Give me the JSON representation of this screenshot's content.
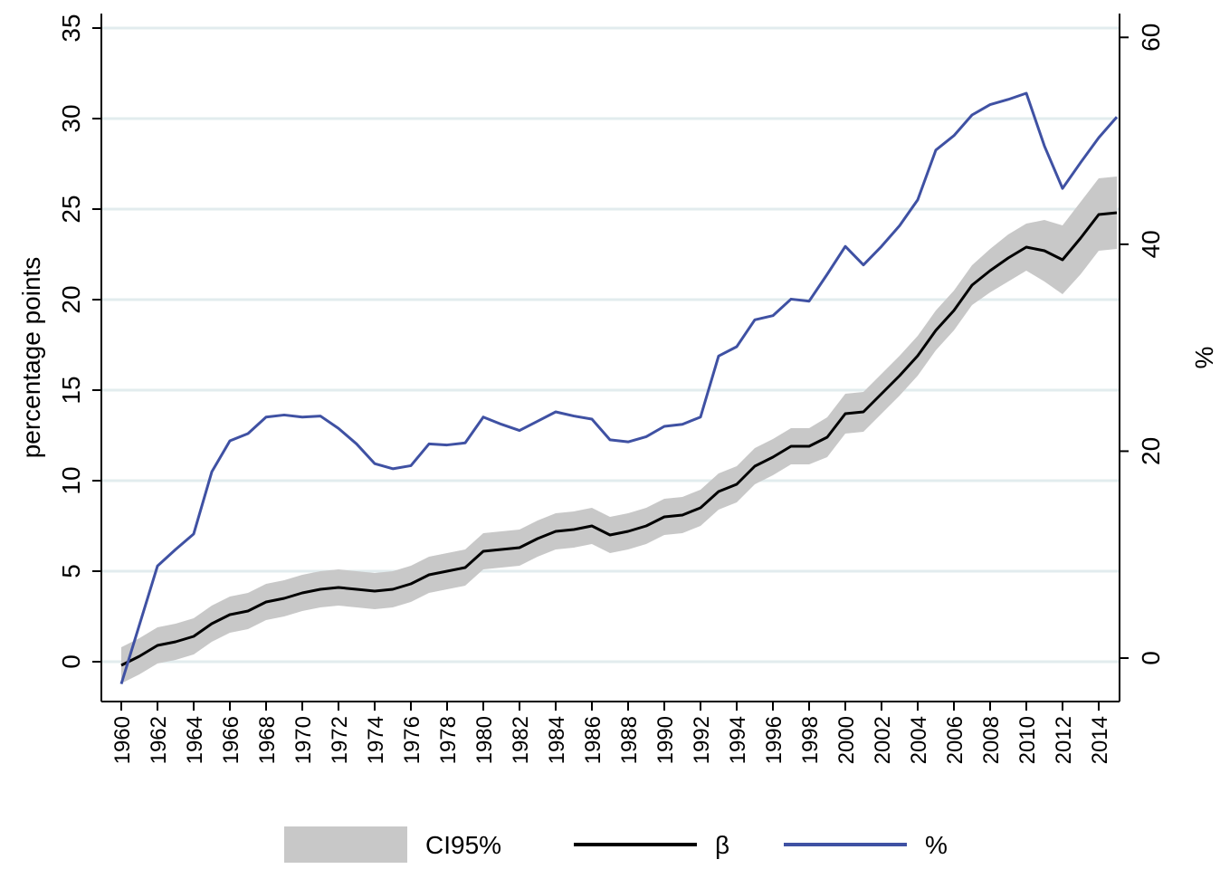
{
  "chart_data": {
    "type": "line",
    "x": [
      1960,
      1961,
      1962,
      1963,
      1964,
      1965,
      1966,
      1967,
      1968,
      1969,
      1970,
      1971,
      1972,
      1973,
      1974,
      1975,
      1976,
      1977,
      1978,
      1979,
      1980,
      1981,
      1982,
      1983,
      1984,
      1985,
      1986,
      1987,
      1988,
      1989,
      1990,
      1991,
      1992,
      1993,
      1994,
      1995,
      1996,
      1997,
      1998,
      1999,
      2000,
      2001,
      2002,
      2003,
      2004,
      2005,
      2006,
      2007,
      2008,
      2009,
      2010,
      2011,
      2012,
      2013,
      2014,
      2015
    ],
    "band": {
      "name": "CI95%",
      "color": "#c8c8c8",
      "lower": [
        -1.2,
        -0.7,
        -0.1,
        0.1,
        0.4,
        1.1,
        1.6,
        1.8,
        2.3,
        2.5,
        2.8,
        3.0,
        3.1,
        3.0,
        2.9,
        3.0,
        3.3,
        3.8,
        4.0,
        4.2,
        5.1,
        5.2,
        5.3,
        5.8,
        6.2,
        6.3,
        6.5,
        6.0,
        6.2,
        6.5,
        7.0,
        7.1,
        7.5,
        8.4,
        8.8,
        9.8,
        10.3,
        10.9,
        10.9,
        11.3,
        12.6,
        12.7,
        13.7,
        14.7,
        15.8,
        17.2,
        18.3,
        19.7,
        20.4,
        21.0,
        21.6,
        21.0,
        20.3,
        21.4,
        22.7,
        22.8
      ],
      "upper": [
        0.8,
        1.3,
        1.9,
        2.1,
        2.4,
        3.1,
        3.6,
        3.8,
        4.3,
        4.5,
        4.8,
        5.0,
        5.1,
        5.0,
        4.9,
        5.0,
        5.3,
        5.8,
        6.0,
        6.2,
        7.1,
        7.2,
        7.3,
        7.8,
        8.2,
        8.3,
        8.5,
        8.0,
        8.2,
        8.5,
        9.0,
        9.1,
        9.5,
        10.4,
        10.8,
        11.8,
        12.3,
        12.9,
        12.9,
        13.5,
        14.8,
        14.9,
        15.9,
        16.9,
        18.0,
        19.4,
        20.5,
        21.9,
        22.8,
        23.6,
        24.2,
        24.4,
        24.1,
        25.4,
        26.7,
        26.8
      ]
    },
    "series": [
      {
        "name": "β",
        "color": "#000000",
        "values": [
          -0.2,
          0.3,
          0.9,
          1.1,
          1.4,
          2.1,
          2.6,
          2.8,
          3.3,
          3.5,
          3.8,
          4.0,
          4.1,
          4.0,
          3.9,
          4.0,
          4.3,
          4.8,
          5.0,
          5.2,
          6.1,
          6.2,
          6.3,
          6.8,
          7.2,
          7.3,
          7.5,
          7.0,
          7.2,
          7.5,
          8.0,
          8.1,
          8.5,
          9.4,
          9.8,
          10.8,
          11.3,
          11.9,
          11.9,
          12.4,
          13.7,
          13.8,
          14.8,
          15.8,
          16.9,
          18.3,
          19.4,
          20.8,
          21.6,
          22.3,
          22.9,
          22.7,
          22.2,
          23.4,
          24.7,
          24.8
        ]
      },
      {
        "name": "%",
        "color": "#3f51a3",
        "axis": "y2",
        "values": [
          -2.5,
          3.2,
          8.9,
          10.5,
          12.0,
          18.0,
          21.0,
          21.7,
          23.3,
          23.5,
          23.3,
          23.4,
          22.2,
          20.7,
          18.8,
          18.3,
          18.6,
          20.7,
          20.6,
          20.8,
          23.3,
          22.6,
          22.0,
          22.9,
          23.8,
          23.4,
          23.1,
          21.1,
          20.9,
          21.4,
          22.4,
          22.6,
          23.3,
          29.2,
          30.1,
          32.7,
          33.1,
          34.7,
          34.5,
          37.1,
          39.8,
          38.0,
          39.8,
          41.8,
          44.3,
          49.1,
          50.5,
          52.5,
          53.5,
          54.0,
          54.6,
          49.5,
          45.4,
          47.9,
          50.3,
          52.3
        ]
      }
    ],
    "y_label": "percentage points",
    "y2_label": "%",
    "xlim": [
      1958.9,
      2015.15
    ],
    "xticks": [
      1960,
      1962,
      1964,
      1966,
      1968,
      1970,
      1972,
      1974,
      1976,
      1978,
      1980,
      1982,
      1984,
      1986,
      1988,
      1990,
      1992,
      1994,
      1996,
      1998,
      2000,
      2002,
      2004,
      2006,
      2008,
      2010,
      2012,
      2014
    ],
    "ylim": [
      -2.2,
      35.8
    ],
    "yticks": [
      0,
      5,
      10,
      15,
      20,
      25,
      30,
      35
    ],
    "y2lim": [
      -4.2,
      62.3
    ],
    "y2ticks": [
      0,
      20,
      40,
      60
    ],
    "grid": true
  }
}
